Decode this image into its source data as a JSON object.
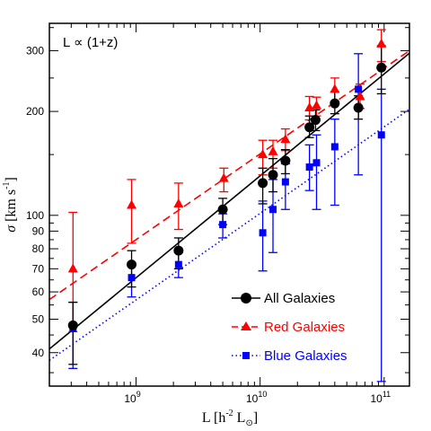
{
  "chart_data": {
    "type": "scatter",
    "annotation": "L ∝ (1+z)",
    "xlabel": {
      "main": "L [h",
      "exp": "-2",
      "sym": " L",
      "sub": "⊙",
      "close": "]"
    },
    "ylabel": {
      "sigma": "σ",
      "main": " [km s",
      "exp": "-1",
      "close": "]"
    },
    "x_scale": "log",
    "y_scale": "log",
    "xlim": [
      200000000,
      160000000000
    ],
    "ylim": [
      32,
      360
    ],
    "x_ticks": [
      {
        "value": 1000000000,
        "base": "10",
        "exp": "9"
      },
      {
        "value": 10000000000,
        "base": "10",
        "exp": "10"
      },
      {
        "value": 100000000000,
        "base": "10",
        "exp": "11"
      }
    ],
    "y_ticks": [
      {
        "value": 40,
        "label": "40"
      },
      {
        "value": 50,
        "label": "50"
      },
      {
        "value": 60,
        "label": "60"
      },
      {
        "value": 70,
        "label": "70"
      },
      {
        "value": 80,
        "label": "80"
      },
      {
        "value": 90,
        "label": "90"
      },
      {
        "value": 100,
        "label": "100"
      },
      {
        "value": 200,
        "label": "200"
      },
      {
        "value": 300,
        "label": "300"
      }
    ],
    "series": [
      {
        "name": "All Galaxies",
        "color": "#000000",
        "marker": "circle",
        "line_style": "solid",
        "fit": {
          "x": [
            200000000,
            160000000000
          ],
          "y": [
            41,
            295
          ]
        },
        "points": [
          {
            "x": 310000000,
            "y": 48,
            "lo": 37,
            "hi": 56
          },
          {
            "x": 920000000,
            "y": 72,
            "lo": 62,
            "hi": 79
          },
          {
            "x": 2200000000,
            "y": 79,
            "lo": 70,
            "hi": 86
          },
          {
            "x": 5000000000,
            "y": 104,
            "lo": 94,
            "hi": 112
          },
          {
            "x": 10500000000,
            "y": 124,
            "lo": 108,
            "hi": 137
          },
          {
            "x": 12700000000,
            "y": 131,
            "lo": 117,
            "hi": 146
          },
          {
            "x": 16000000000,
            "y": 144,
            "lo": 132,
            "hi": 155
          },
          {
            "x": 25000000000,
            "y": 180,
            "lo": 168,
            "hi": 194
          },
          {
            "x": 28000000000,
            "y": 189,
            "lo": 176,
            "hi": 202
          },
          {
            "x": 40000000000,
            "y": 211,
            "lo": 197,
            "hi": 228
          },
          {
            "x": 62000000000,
            "y": 205,
            "lo": 190,
            "hi": 222
          },
          {
            "x": 95000000000,
            "y": 268,
            "lo": 225,
            "hi": 310
          }
        ]
      },
      {
        "name": "Red Galaxies",
        "color": "#ff0000",
        "marker": "triangle",
        "line_style": "dashed",
        "fit": {
          "x": [
            200000000,
            160000000000
          ],
          "y": [
            57,
            300
          ]
        },
        "points": [
          {
            "x": 310000000,
            "y": 70,
            "lo": 46,
            "hi": 102
          },
          {
            "x": 920000000,
            "y": 107,
            "lo": 83,
            "hi": 127
          },
          {
            "x": 2200000000,
            "y": 108,
            "lo": 91,
            "hi": 124
          },
          {
            "x": 5100000000,
            "y": 128,
            "lo": 117,
            "hi": 137
          },
          {
            "x": 10500000000,
            "y": 150,
            "lo": 131,
            "hi": 165
          },
          {
            "x": 12700000000,
            "y": 153,
            "lo": 137,
            "hi": 165
          },
          {
            "x": 16000000000,
            "y": 166,
            "lo": 154,
            "hi": 178
          },
          {
            "x": 25000000000,
            "y": 205,
            "lo": 189,
            "hi": 221
          },
          {
            "x": 28500000000,
            "y": 208,
            "lo": 194,
            "hi": 220
          },
          {
            "x": 40000000000,
            "y": 232,
            "lo": 214,
            "hi": 250
          },
          {
            "x": 64000000000,
            "y": 221,
            "lo": 204,
            "hi": 240
          },
          {
            "x": 95000000000,
            "y": 314,
            "lo": 279,
            "hi": 345
          }
        ]
      },
      {
        "name": "Blue Galaxies",
        "color": "#0000ff",
        "marker": "square",
        "line_style": "dotted",
        "fit": {
          "x": [
            200000000,
            160000000000
          ],
          "y": [
            38,
            203
          ]
        },
        "points": [
          {
            "x": 310000000,
            "y": 47,
            "lo": 36,
            "hi": 56
          },
          {
            "x": 920000000,
            "y": 66,
            "lo": 58,
            "hi": 73
          },
          {
            "x": 2200000000,
            "y": 72,
            "lo": 66,
            "hi": 78
          },
          {
            "x": 5000000000,
            "y": 94,
            "lo": 86,
            "hi": 101
          },
          {
            "x": 10500000000,
            "y": 89,
            "lo": 69,
            "hi": 110
          },
          {
            "x": 12700000000,
            "y": 104,
            "lo": 78,
            "hi": 127
          },
          {
            "x": 16000000000,
            "y": 125,
            "lo": 104,
            "hi": 141
          },
          {
            "x": 25000000000,
            "y": 138,
            "lo": 118,
            "hi": 160
          },
          {
            "x": 28500000000,
            "y": 142,
            "lo": 104,
            "hi": 171
          },
          {
            "x": 40000000000,
            "y": 158,
            "lo": 107,
            "hi": 190
          },
          {
            "x": 62000000000,
            "y": 232,
            "lo": 131,
            "hi": 294
          },
          {
            "x": 95000000000,
            "y": 171,
            "lo": 33,
            "hi": 232
          }
        ]
      }
    ],
    "legend": {
      "placement": "bottom-right",
      "entries": [
        "All Galaxies",
        "Red Galaxies",
        "Blue Galaxies"
      ]
    }
  }
}
